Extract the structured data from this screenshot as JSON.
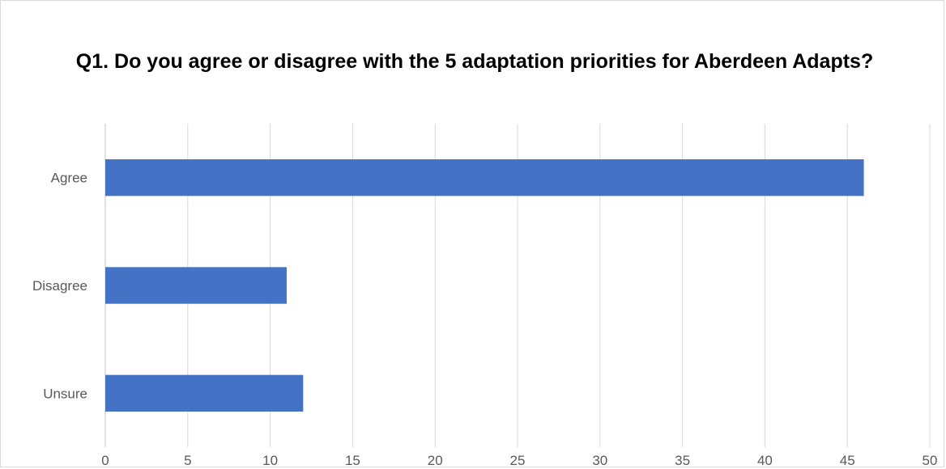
{
  "chart_data": {
    "type": "bar",
    "orientation": "horizontal",
    "title": "Q1. Do you agree or disagree with the 5 adaptation priorities for Aberdeen Adapts?",
    "categories": [
      "Agree",
      "Disagree",
      "Unsure"
    ],
    "values": [
      46,
      11,
      12
    ],
    "xlim": [
      0,
      50
    ],
    "x_ticks": [
      "0",
      "5",
      "10",
      "15",
      "20",
      "25",
      "30",
      "35",
      "40",
      "45",
      "50"
    ],
    "grid": "vertical",
    "legend": "none",
    "bar_color": "#4472C4",
    "grid_color": "#d9d9d9"
  }
}
